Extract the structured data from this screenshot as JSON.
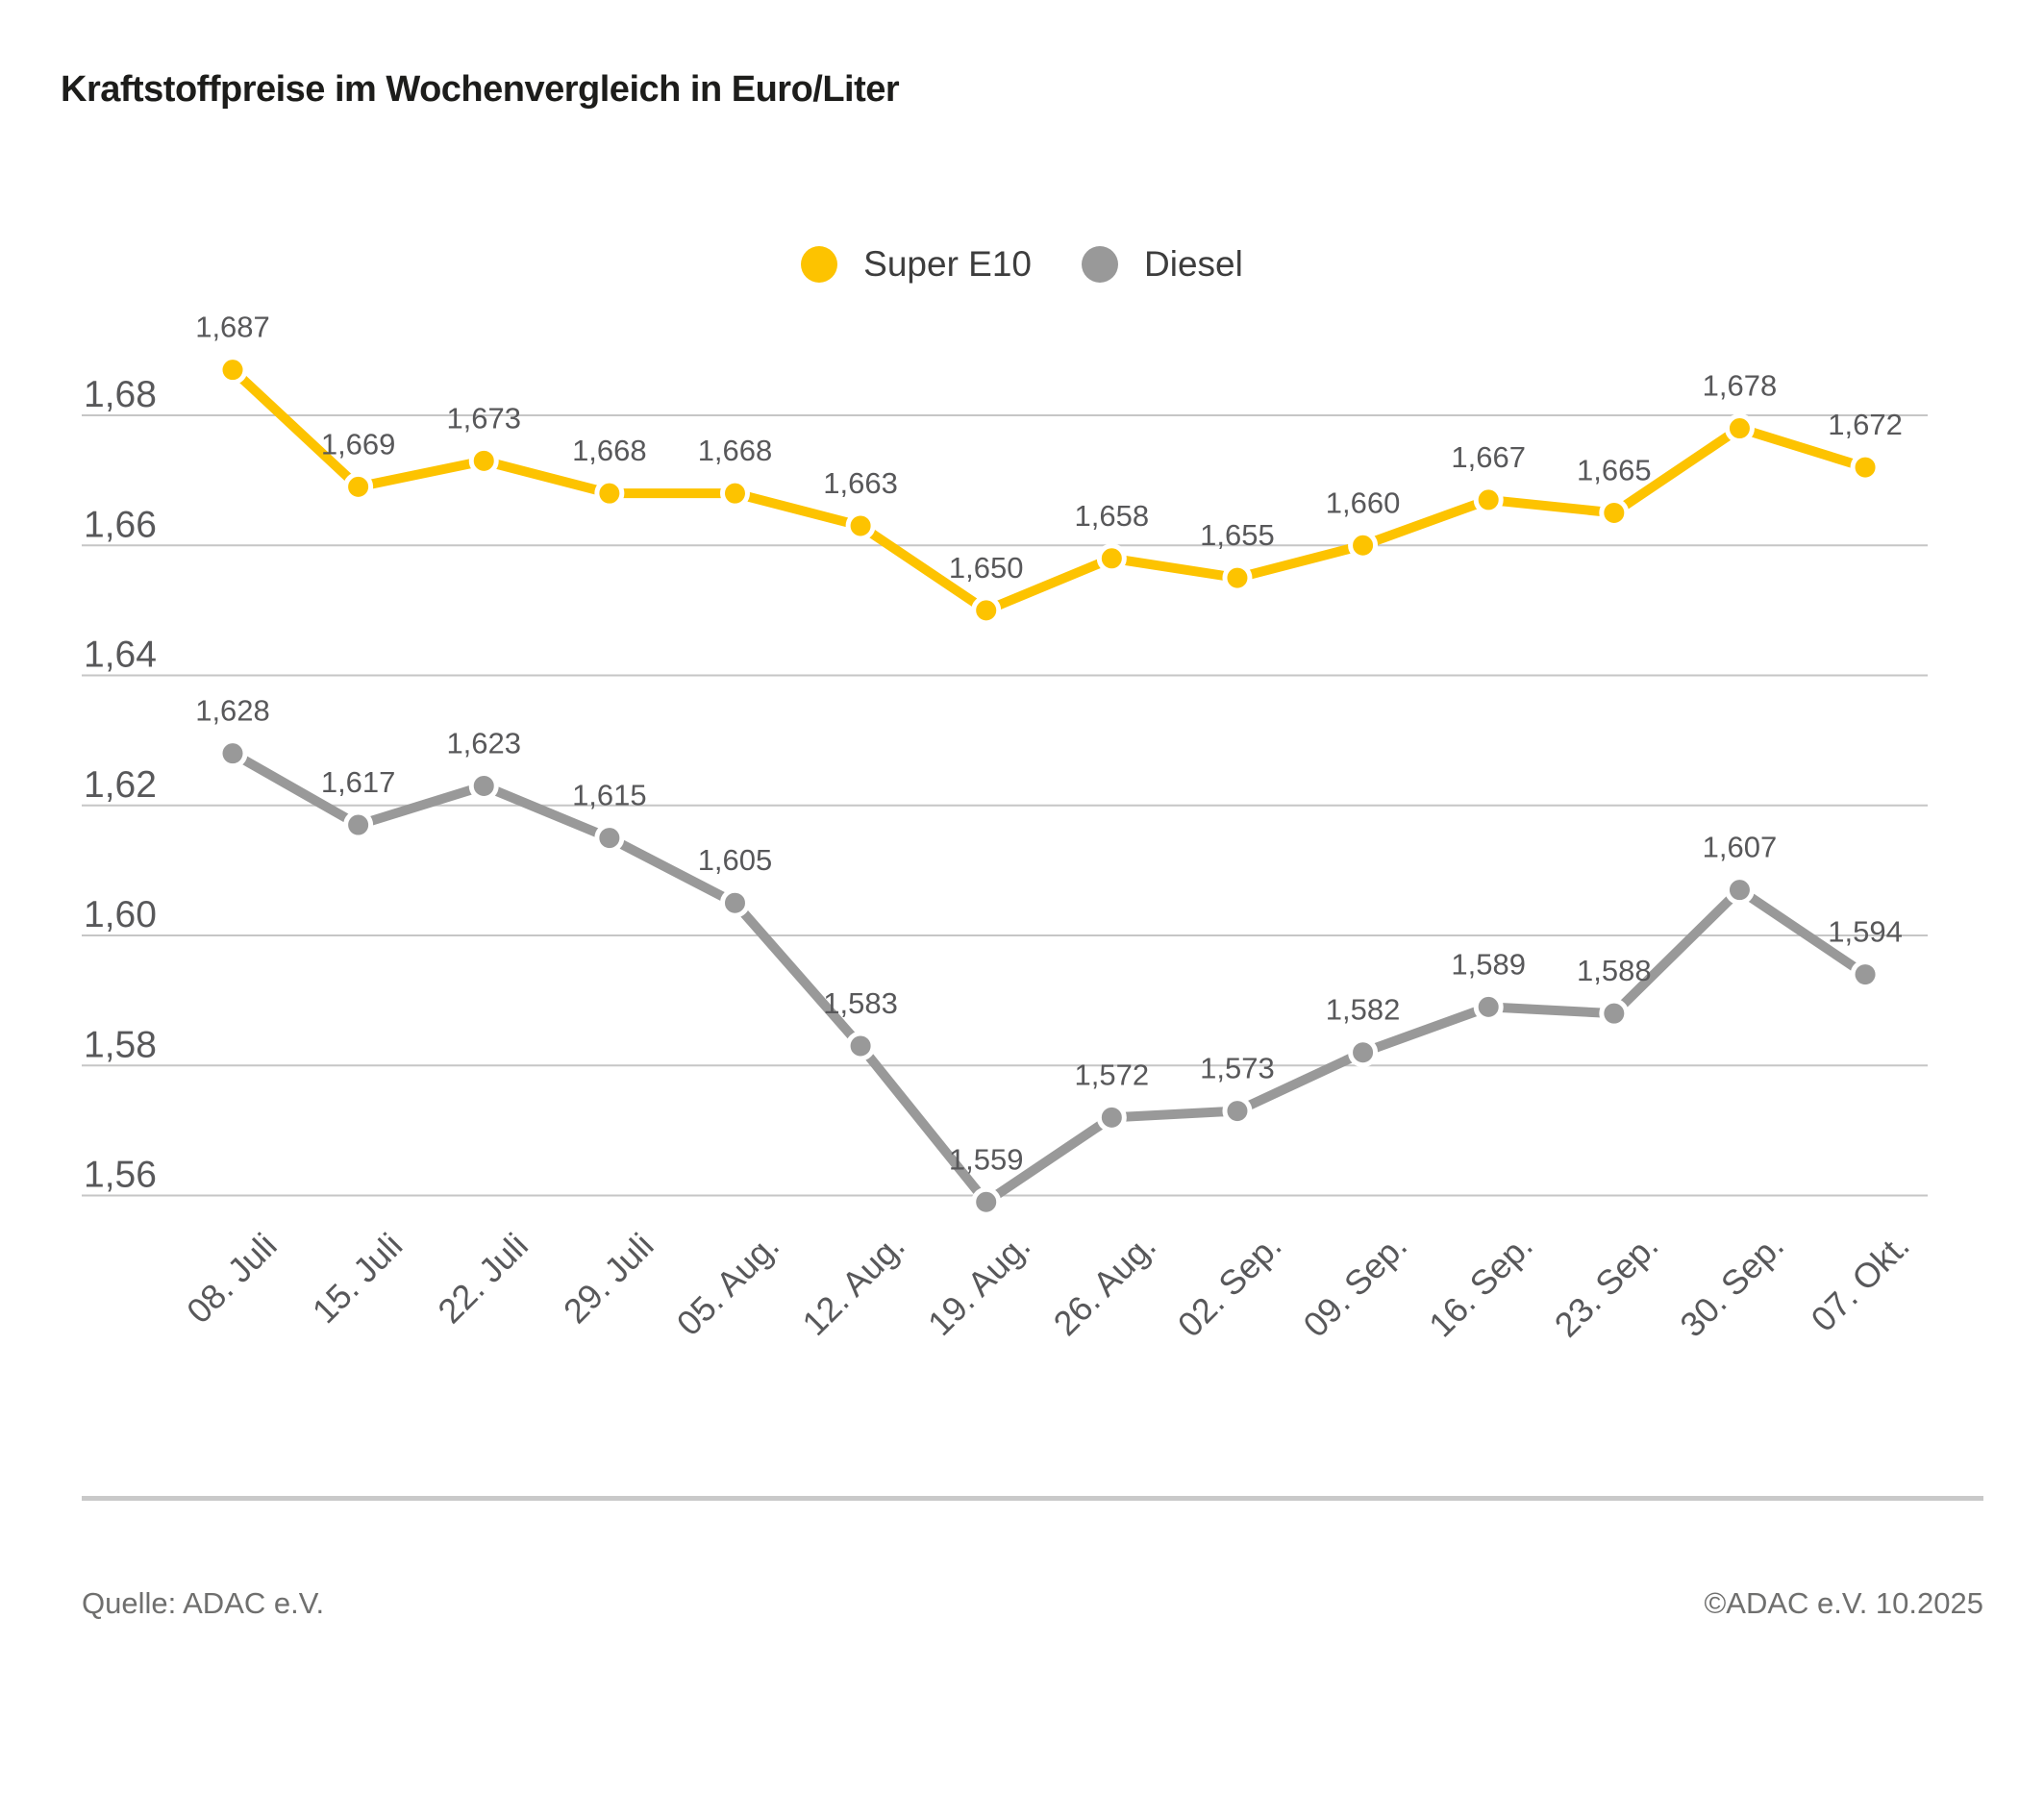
{
  "chart_data": {
    "type": "line",
    "title": "Kraftstoffpreise im Wochenvergleich in Euro/Liter",
    "unit": "Euro/Liter",
    "xlabel": "",
    "ylabel": "",
    "categories": [
      "08. Juli",
      "15. Juli",
      "22. Juli",
      "29. Juli",
      "05. Aug.",
      "12. Aug.",
      "19. Aug.",
      "26. Aug.",
      "02. Sep.",
      "09. Sep.",
      "16. Sep.",
      "23. Sep.",
      "30. Sep.",
      "07. Okt."
    ],
    "series": [
      {
        "name": "Super E10",
        "color": "#FDC300",
        "values": [
          1.687,
          1.669,
          1.673,
          1.668,
          1.668,
          1.663,
          1.65,
          1.658,
          1.655,
          1.66,
          1.667,
          1.665,
          1.678,
          1.672
        ]
      },
      {
        "name": "Diesel",
        "color": "#999999",
        "values": [
          1.628,
          1.617,
          1.623,
          1.615,
          1.605,
          1.583,
          1.559,
          1.572,
          1.573,
          1.582,
          1.589,
          1.588,
          1.607,
          1.594
        ]
      }
    ],
    "y_axis": {
      "ticks": [
        1.68,
        1.66,
        1.64,
        1.62,
        1.6,
        1.58,
        1.56
      ],
      "tick_labels": [
        "1,68",
        "1,66",
        "1,64",
        "1,62",
        "1,60",
        "1,58",
        "1,56"
      ],
      "range": [
        1.56,
        1.68
      ],
      "decimal_separator": ","
    },
    "grid": true,
    "legend_position": "top-center",
    "x_label_rotation": -45,
    "value_labels_shown": true,
    "colors": {
      "grid": "#c6c6c6",
      "label_text": "#58585a",
      "title_text": "#1d1d1b"
    }
  },
  "footer": {
    "source": "Quelle: ADAC e.V.",
    "copyright": "©ADAC e.V. 10.2025"
  }
}
